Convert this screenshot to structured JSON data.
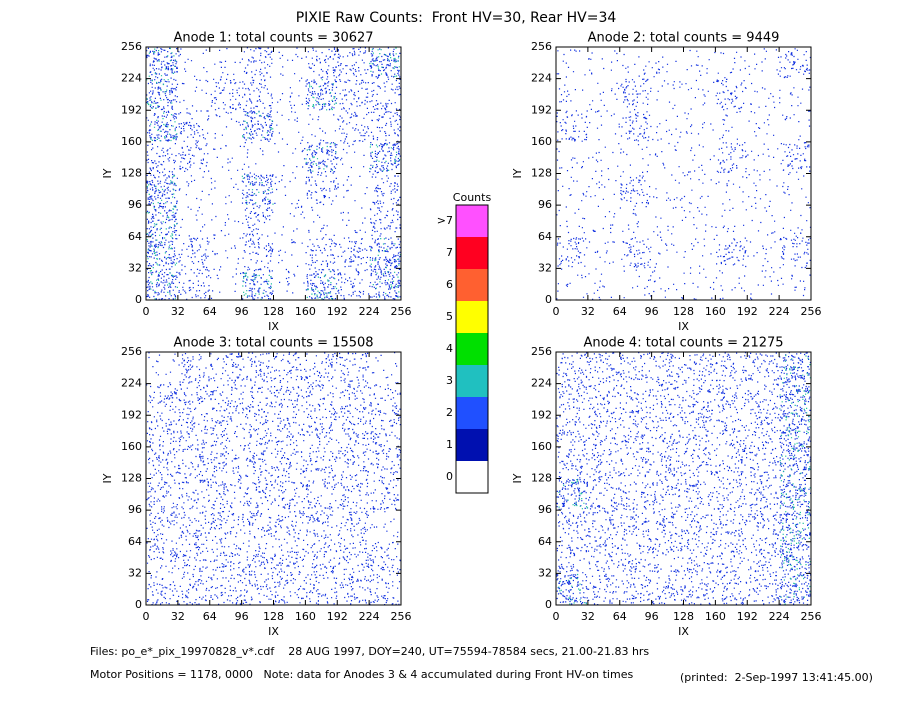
{
  "chart_data": {
    "type": "heatmap-grid",
    "title": "PIXIE Raw Counts:  Front HV=30, Rear HV=34",
    "footer": [
      "Files: po_e*_pix_19970828_v*.cdf    28 AUG 1997, DOY=240, UT=75594-78584 secs, 21.00-21.83 hrs",
      "Motor Positions = 1178, 0000   Note: data for Anodes 3 & 4 accumulated during Front HV-on times",
      "(printed:  2-Sep-1997 13:41:45.00)"
    ],
    "colorbar": {
      "title": "Counts",
      "levels": [
        {
          "label": "0",
          "color": "#ffffff"
        },
        {
          "label": "1",
          "color": "#0010b0"
        },
        {
          "label": "2",
          "color": "#2050ff"
        },
        {
          "label": "3",
          "color": "#20c0c0"
        },
        {
          "label": "4",
          "color": "#00e000"
        },
        {
          "label": "5",
          "color": "#ffff00"
        },
        {
          "label": "6",
          "color": "#ff6030"
        },
        {
          "label": "7",
          "color": "#ff0020"
        },
        {
          "label": ">7",
          "color": "#ff50ff"
        }
      ]
    },
    "panels": [
      {
        "title": "Anode 1: total counts = 30627",
        "xlabel": "IX",
        "ylabel": "IY",
        "xlim": [
          0,
          256
        ],
        "ylim": [
          0,
          256
        ],
        "xticks": [
          0,
          32,
          64,
          96,
          128,
          160,
          192,
          224,
          256
        ],
        "yticks": [
          0,
          32,
          64,
          96,
          128,
          160,
          192,
          224,
          256
        ],
        "density": [
          [
            3,
            1,
            1,
            2,
            1,
            2,
            2,
            3
          ],
          [
            3,
            1,
            2,
            2,
            1,
            3,
            2,
            2
          ],
          [
            3,
            2,
            1,
            3,
            1,
            1,
            2,
            2
          ],
          [
            2,
            2,
            1,
            1,
            1,
            3,
            1,
            3
          ],
          [
            3,
            1,
            1,
            3,
            1,
            2,
            1,
            2
          ],
          [
            3,
            1,
            1,
            2,
            1,
            1,
            1,
            2
          ],
          [
            3,
            2,
            1,
            2,
            1,
            2,
            2,
            3
          ],
          [
            3,
            2,
            1,
            3,
            1,
            3,
            2,
            3
          ]
        ]
      },
      {
        "title": "Anode 2: total counts = 9449",
        "xlabel": "IX",
        "ylabel": "IY",
        "xlim": [
          0,
          256
        ],
        "ylim": [
          0,
          256
        ],
        "xticks": [
          0,
          32,
          64,
          96,
          128,
          160,
          192,
          224,
          256
        ],
        "yticks": [
          0,
          32,
          64,
          96,
          128,
          160,
          192,
          224,
          256
        ],
        "density": [
          [
            1,
            1,
            1,
            1,
            1,
            1,
            1,
            2
          ],
          [
            1,
            1,
            2,
            1,
            1,
            2,
            1,
            1
          ],
          [
            2,
            1,
            2,
            1,
            1,
            1,
            1,
            1
          ],
          [
            1,
            1,
            1,
            1,
            1,
            2,
            1,
            2
          ],
          [
            1,
            1,
            2,
            1,
            1,
            1,
            1,
            1
          ],
          [
            1,
            1,
            1,
            1,
            1,
            1,
            1,
            1
          ],
          [
            2,
            1,
            2,
            1,
            1,
            2,
            1,
            2
          ],
          [
            1,
            1,
            1,
            1,
            1,
            1,
            1,
            1
          ]
        ]
      },
      {
        "title": "Anode 3: total counts = 15508",
        "xlabel": "IX",
        "ylabel": "IY",
        "xlim": [
          0,
          256
        ],
        "ylim": [
          0,
          256
        ],
        "xticks": [
          0,
          32,
          64,
          96,
          128,
          160,
          192,
          224,
          256
        ],
        "yticks": [
          0,
          32,
          64,
          96,
          128,
          160,
          192,
          224,
          256
        ],
        "density": [
          [
            1,
            2,
            2,
            2,
            2,
            2,
            2,
            1
          ],
          [
            2,
            2,
            2,
            2,
            2,
            2,
            2,
            2
          ],
          [
            2,
            2,
            2,
            2,
            2,
            2,
            2,
            2
          ],
          [
            2,
            2,
            2,
            2,
            2,
            2,
            2,
            2
          ],
          [
            2,
            2,
            2,
            2,
            2,
            2,
            2,
            2
          ],
          [
            2,
            2,
            2,
            2,
            2,
            2,
            2,
            1
          ],
          [
            2,
            2,
            2,
            2,
            2,
            2,
            2,
            2
          ],
          [
            2,
            2,
            2,
            2,
            2,
            2,
            2,
            2
          ]
        ]
      },
      {
        "title": "Anode 4: total counts = 21275",
        "xlabel": "IX",
        "ylabel": "IY",
        "xlim": [
          0,
          256
        ],
        "ylim": [
          0,
          256
        ],
        "xticks": [
          0,
          32,
          64,
          96,
          128,
          160,
          192,
          224,
          256
        ],
        "yticks": [
          0,
          32,
          64,
          96,
          128,
          160,
          192,
          224,
          256
        ],
        "density": [
          [
            2,
            2,
            2,
            2,
            2,
            2,
            2,
            3
          ],
          [
            2,
            2,
            2,
            2,
            2,
            2,
            2,
            3
          ],
          [
            2,
            2,
            2,
            2,
            2,
            2,
            2,
            3
          ],
          [
            2,
            2,
            2,
            2,
            2,
            2,
            2,
            3
          ],
          [
            3,
            2,
            2,
            2,
            2,
            2,
            2,
            3
          ],
          [
            2,
            2,
            2,
            2,
            2,
            2,
            2,
            3
          ],
          [
            2,
            2,
            2,
            2,
            2,
            2,
            2,
            3
          ],
          [
            3,
            2,
            2,
            2,
            2,
            2,
            2,
            3
          ]
        ]
      }
    ]
  }
}
